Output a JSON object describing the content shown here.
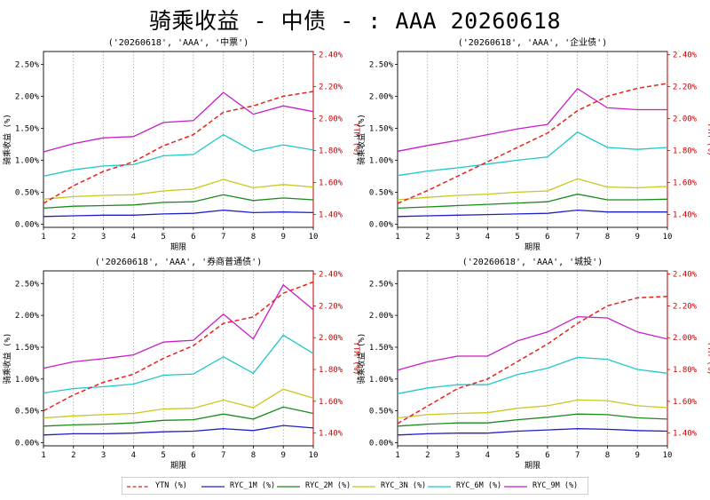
{
  "title": "骑乘收益 - 中债 - : AAA 20260618",
  "colors": {
    "YTN (%)": "#e8231c",
    "RYC_1M (%)": "#1f1fc8",
    "RYC_2M (%)": "#1a8a1a",
    "RYC_3N (%)": "#c8c81e",
    "RYC_6M (%)": "#1ec8c8",
    "RYC_9M (%)": "#c81ec8"
  },
  "legend": [
    "YTN (%)",
    "RYC_1M (%)",
    "RYC_2M (%)",
    "RYC_3N (%)",
    "RYC_6M (%)",
    "RYC_9M (%)"
  ],
  "chart_data": [
    {
      "type": "line",
      "title": "('20260618', 'AAA', '中票')",
      "xlabel": "期限",
      "ylabel": "骑乘收益 (%)",
      "y2label": "YTM (%)",
      "x": [
        1,
        2,
        3,
        4,
        5,
        6,
        7,
        8,
        9,
        10
      ],
      "xticks": [
        "1",
        "2",
        "3",
        "4",
        "5",
        "6",
        "7",
        "8",
        "9",
        "10"
      ],
      "ylim": [
        -0.05,
        2.7
      ],
      "yticks": [
        "0.00%",
        "0.50%",
        "1.00%",
        "1.50%",
        "2.00%",
        "2.50%"
      ],
      "y2lim": [
        1.32,
        2.42
      ],
      "y2ticks": [
        "1.40%",
        "1.60%",
        "1.80%",
        "2.00%",
        "2.20%",
        "2.40%"
      ],
      "grid": "vertical dotted",
      "series": [
        {
          "name": "RYC_1M (%)",
          "axis": "left",
          "values": [
            0.12,
            0.13,
            0.14,
            0.14,
            0.16,
            0.17,
            0.22,
            0.18,
            0.19,
            0.18
          ]
        },
        {
          "name": "RYC_2M (%)",
          "axis": "left",
          "values": [
            0.25,
            0.28,
            0.29,
            0.3,
            0.34,
            0.35,
            0.46,
            0.37,
            0.41,
            0.38
          ]
        },
        {
          "name": "RYC_3N (%)",
          "axis": "left",
          "values": [
            0.39,
            0.43,
            0.45,
            0.46,
            0.52,
            0.55,
            0.7,
            0.57,
            0.62,
            0.58
          ]
        },
        {
          "name": "RYC_6M (%)",
          "axis": "left",
          "values": [
            0.75,
            0.85,
            0.91,
            0.93,
            1.07,
            1.09,
            1.4,
            1.14,
            1.24,
            1.16
          ]
        },
        {
          "name": "RYC_9M (%)",
          "axis": "left",
          "values": [
            1.13,
            1.26,
            1.35,
            1.37,
            1.59,
            1.62,
            2.06,
            1.72,
            1.85,
            1.76
          ]
        },
        {
          "name": "YTN (%)",
          "axis": "right",
          "dashed": true,
          "values": [
            1.47,
            1.58,
            1.67,
            1.73,
            1.83,
            1.9,
            2.04,
            2.08,
            2.14,
            2.17
          ]
        }
      ]
    },
    {
      "type": "line",
      "title": "('20260618', 'AAA', '企业债')",
      "xlabel": "期限",
      "ylabel": "骑乘收益 (%)",
      "y2label": "YTM (%)",
      "x": [
        1,
        2,
        3,
        4,
        5,
        6,
        7,
        8,
        9,
        10
      ],
      "xticks": [
        "1",
        "2",
        "3",
        "4",
        "5",
        "6",
        "7",
        "8",
        "9",
        "10"
      ],
      "ylim": [
        -0.05,
        2.7
      ],
      "yticks": [
        "0.00%",
        "0.50%",
        "1.00%",
        "1.50%",
        "2.00%",
        "2.50%"
      ],
      "y2lim": [
        1.32,
        2.42
      ],
      "y2ticks": [
        "1.40%",
        "1.60%",
        "1.80%",
        "2.00%",
        "2.20%",
        "2.40%"
      ],
      "grid": "vertical dotted",
      "series": [
        {
          "name": "RYC_1M (%)",
          "axis": "left",
          "values": [
            0.12,
            0.13,
            0.14,
            0.15,
            0.16,
            0.17,
            0.22,
            0.19,
            0.19,
            0.19
          ]
        },
        {
          "name": "RYC_2M (%)",
          "axis": "left",
          "values": [
            0.25,
            0.27,
            0.29,
            0.31,
            0.33,
            0.35,
            0.47,
            0.38,
            0.38,
            0.39
          ]
        },
        {
          "name": "RYC_3N (%)",
          "axis": "left",
          "values": [
            0.38,
            0.42,
            0.45,
            0.47,
            0.5,
            0.52,
            0.71,
            0.58,
            0.57,
            0.59
          ]
        },
        {
          "name": "RYC_6M (%)",
          "axis": "left",
          "values": [
            0.76,
            0.83,
            0.88,
            0.94,
            1.0,
            1.05,
            1.44,
            1.2,
            1.17,
            1.2
          ]
        },
        {
          "name": "RYC_9M (%)",
          "axis": "left",
          "values": [
            1.14,
            1.23,
            1.31,
            1.4,
            1.49,
            1.56,
            2.12,
            1.82,
            1.79,
            1.79
          ]
        },
        {
          "name": "YTN (%)",
          "axis": "right",
          "dashed": true,
          "values": [
            1.47,
            1.55,
            1.64,
            1.73,
            1.82,
            1.91,
            2.05,
            2.14,
            2.19,
            2.22
          ]
        }
      ]
    },
    {
      "type": "line",
      "title": "('20260618', 'AAA', '券商普通债')",
      "xlabel": "期限",
      "ylabel": "骑乘收益 (%)",
      "y2label": "YTM (%)",
      "x": [
        1,
        2,
        3,
        4,
        5,
        6,
        7,
        8,
        9,
        10
      ],
      "xticks": [
        "1",
        "2",
        "3",
        "4",
        "5",
        "6",
        "7",
        "8",
        "9",
        "10"
      ],
      "ylim": [
        -0.05,
        2.7
      ],
      "yticks": [
        "0.00%",
        "0.50%",
        "1.00%",
        "1.50%",
        "2.00%",
        "2.50%"
      ],
      "y2lim": [
        1.32,
        2.42
      ],
      "y2ticks": [
        "1.40%",
        "1.60%",
        "1.80%",
        "2.00%",
        "2.20%",
        "2.40%"
      ],
      "grid": "vertical dotted",
      "series": [
        {
          "name": "RYC_1M (%)",
          "axis": "left",
          "values": [
            0.12,
            0.14,
            0.14,
            0.15,
            0.17,
            0.18,
            0.22,
            0.19,
            0.27,
            0.23
          ]
        },
        {
          "name": "RYC_2M (%)",
          "axis": "left",
          "values": [
            0.26,
            0.28,
            0.29,
            0.31,
            0.35,
            0.36,
            0.45,
            0.37,
            0.56,
            0.46
          ]
        },
        {
          "name": "RYC_3N (%)",
          "axis": "left",
          "values": [
            0.39,
            0.42,
            0.44,
            0.46,
            0.53,
            0.54,
            0.67,
            0.55,
            0.84,
            0.7
          ]
        },
        {
          "name": "RYC_6M (%)",
          "axis": "left",
          "values": [
            0.78,
            0.85,
            0.88,
            0.92,
            1.06,
            1.08,
            1.35,
            1.09,
            1.69,
            1.4
          ]
        },
        {
          "name": "RYC_9M (%)",
          "axis": "left",
          "values": [
            1.17,
            1.27,
            1.32,
            1.38,
            1.58,
            1.61,
            2.02,
            1.63,
            2.48,
            2.09
          ]
        },
        {
          "name": "YTN (%)",
          "axis": "right",
          "dashed": true,
          "values": [
            1.54,
            1.64,
            1.72,
            1.77,
            1.87,
            1.95,
            2.09,
            2.13,
            2.28,
            2.35
          ]
        }
      ]
    },
    {
      "type": "line",
      "title": "('20260618', 'AAA', '城投')",
      "xlabel": "期限",
      "ylabel": "骑乘收益 (%)",
      "y2label": "YTM (%)",
      "x": [
        1,
        2,
        3,
        4,
        5,
        6,
        7,
        8,
        9,
        10
      ],
      "xticks": [
        "1",
        "2",
        "3",
        "4",
        "5",
        "6",
        "7",
        "8",
        "9",
        "10"
      ],
      "ylim": [
        -0.05,
        2.7
      ],
      "yticks": [
        "0.00%",
        "0.50%",
        "1.00%",
        "1.50%",
        "2.00%",
        "2.50%"
      ],
      "y2lim": [
        1.32,
        2.42
      ],
      "y2ticks": [
        "1.40%",
        "1.60%",
        "1.80%",
        "2.00%",
        "2.20%",
        "2.40%"
      ],
      "grid": "vertical dotted",
      "series": [
        {
          "name": "RYC_1M (%)",
          "axis": "left",
          "values": [
            0.12,
            0.14,
            0.15,
            0.15,
            0.18,
            0.2,
            0.22,
            0.21,
            0.19,
            0.18
          ]
        },
        {
          "name": "RYC_2M (%)",
          "axis": "left",
          "values": [
            0.26,
            0.29,
            0.31,
            0.31,
            0.36,
            0.4,
            0.45,
            0.44,
            0.39,
            0.37
          ]
        },
        {
          "name": "RYC_3N (%)",
          "axis": "left",
          "values": [
            0.39,
            0.44,
            0.46,
            0.47,
            0.54,
            0.58,
            0.67,
            0.66,
            0.58,
            0.55
          ]
        },
        {
          "name": "RYC_6M (%)",
          "axis": "left",
          "values": [
            0.77,
            0.86,
            0.91,
            0.91,
            1.07,
            1.17,
            1.34,
            1.31,
            1.15,
            1.09
          ]
        },
        {
          "name": "RYC_9M (%)",
          "axis": "left",
          "values": [
            1.14,
            1.27,
            1.36,
            1.36,
            1.6,
            1.74,
            1.98,
            1.96,
            1.74,
            1.63
          ]
        },
        {
          "name": "YTN (%)",
          "axis": "right",
          "dashed": true,
          "values": [
            1.46,
            1.57,
            1.68,
            1.74,
            1.85,
            1.96,
            2.09,
            2.2,
            2.25,
            2.26
          ]
        }
      ]
    }
  ]
}
